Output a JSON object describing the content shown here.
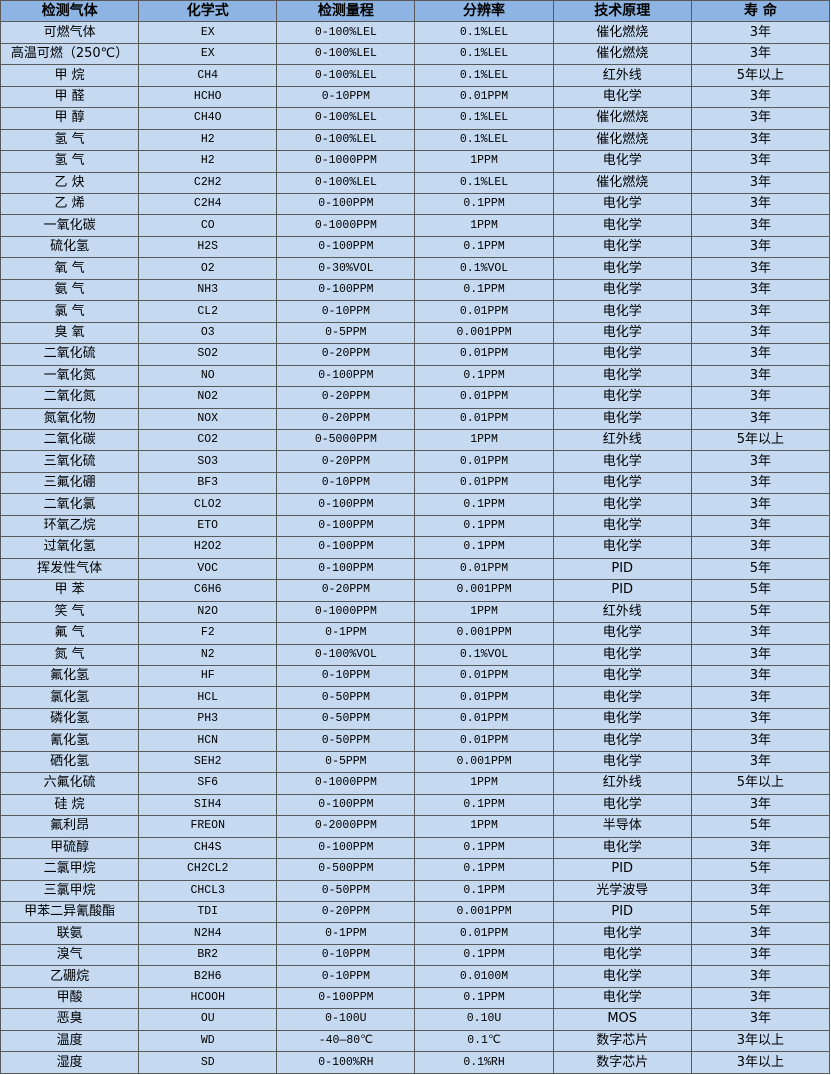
{
  "colors": {
    "header_bg": "#8db4e2",
    "row_bg": "#c5d9f1",
    "border": "#5a5a5a"
  },
  "headers": [
    "检测气体",
    "化学式",
    "检测量程",
    "分辨率",
    "技术原理",
    "寿 命"
  ],
  "rows": [
    [
      "可燃气体",
      "EX",
      "0-100%LEL",
      "0.1%LEL",
      "催化燃烧",
      "3年"
    ],
    [
      "高温可燃（250℃）",
      "EX",
      "0-100%LEL",
      "0.1%LEL",
      "催化燃烧",
      "3年"
    ],
    [
      "甲 烷",
      "CH4",
      "0-100%LEL",
      "0.1%LEL",
      "红外线",
      "5年以上"
    ],
    [
      "甲 醛",
      "HCHO",
      "0-10PPM",
      "0.01PPM",
      "电化学",
      "3年"
    ],
    [
      "甲 醇",
      "CH4O",
      "0-100%LEL",
      "0.1%LEL",
      "催化燃烧",
      "3年"
    ],
    [
      "氢 气",
      "H2",
      "0-100%LEL",
      "0.1%LEL",
      "催化燃烧",
      "3年"
    ],
    [
      "氢 气",
      "H2",
      "0-1000PPM",
      "1PPM",
      "电化学",
      "3年"
    ],
    [
      "乙 炔",
      "C2H2",
      "0-100%LEL",
      "0.1%LEL",
      "催化燃烧",
      "3年"
    ],
    [
      "乙 烯",
      "C2H4",
      "0-100PPM",
      "0.1PPM",
      "电化学",
      "3年"
    ],
    [
      "一氧化碳",
      "CO",
      "0-1000PPM",
      "1PPM",
      "电化学",
      "3年"
    ],
    [
      "硫化氢",
      "H2S",
      "0-100PPM",
      "0.1PPM",
      "电化学",
      "3年"
    ],
    [
      "氧 气",
      "O2",
      "0-30%VOL",
      "0.1%VOL",
      "电化学",
      "3年"
    ],
    [
      "氨 气",
      "NH3",
      "0-100PPM",
      "0.1PPM",
      "电化学",
      "3年"
    ],
    [
      "氯 气",
      "CL2",
      "0-10PPM",
      "0.01PPM",
      "电化学",
      "3年"
    ],
    [
      "臭 氧",
      "O3",
      "0-5PPM",
      "0.001PPM",
      "电化学",
      "3年"
    ],
    [
      "二氧化硫",
      "SO2",
      "0-20PPM",
      "0.01PPM",
      "电化学",
      "3年"
    ],
    [
      "一氧化氮",
      "NO",
      "0-100PPM",
      "0.1PPM",
      "电化学",
      "3年"
    ],
    [
      "二氧化氮",
      "NO2",
      "0-20PPM",
      "0.01PPM",
      "电化学",
      "3年"
    ],
    [
      "氮氧化物",
      "NOX",
      "0-20PPM",
      "0.01PPM",
      "电化学",
      "3年"
    ],
    [
      "二氧化碳",
      "CO2",
      "0-5000PPM",
      "1PPM",
      "红外线",
      "5年以上"
    ],
    [
      "三氧化硫",
      "SO3",
      "0-20PPM",
      "0.01PPM",
      "电化学",
      "3年"
    ],
    [
      "三氟化硼",
      "BF3",
      "0-10PPM",
      "0.01PPM",
      "电化学",
      "3年"
    ],
    [
      "二氧化氯",
      "CLO2",
      "0-100PPM",
      "0.1PPM",
      "电化学",
      "3年"
    ],
    [
      "环氧乙烷",
      "ETO",
      "0-100PPM",
      "0.1PPM",
      "电化学",
      "3年"
    ],
    [
      "过氧化氢",
      "H2O2",
      "0-100PPM",
      "0.1PPM",
      "电化学",
      "3年"
    ],
    [
      "挥发性气体",
      "VOC",
      "0-100PPM",
      "0.01PPM",
      "PID",
      "5年"
    ],
    [
      "甲 苯",
      "C6H6",
      "0-20PPM",
      "0.001PPM",
      "PID",
      "5年"
    ],
    [
      "笑 气",
      "N2O",
      "0-1000PPM",
      "1PPM",
      "红外线",
      "5年"
    ],
    [
      "氟 气",
      "F2",
      "0-1PPM",
      "0.001PPM",
      "电化学",
      "3年"
    ],
    [
      "氮 气",
      "N2",
      "0-100%VOL",
      "0.1%VOL",
      "电化学",
      "3年"
    ],
    [
      "氟化氢",
      "HF",
      "0-10PPM",
      "0.01PPM",
      "电化学",
      "3年"
    ],
    [
      "氯化氢",
      "HCL",
      "0-50PPM",
      "0.01PPM",
      "电化学",
      "3年"
    ],
    [
      "磷化氢",
      "PH3",
      "0-50PPM",
      "0.01PPM",
      "电化学",
      "3年"
    ],
    [
      "氰化氢",
      "HCN",
      "0-50PPM",
      "0.01PPM",
      "电化学",
      "3年"
    ],
    [
      "硒化氢",
      "SEH2",
      "0-5PPM",
      "0.001PPM",
      "电化学",
      "3年"
    ],
    [
      "六氟化硫",
      "SF6",
      "0-1000PPM",
      "1PPM",
      "红外线",
      "5年以上"
    ],
    [
      "硅 烷",
      "SIH4",
      "0-100PPM",
      "0.1PPM",
      "电化学",
      "3年"
    ],
    [
      "氟利昂",
      "FREON",
      "0-2000PPM",
      "1PPM",
      "半导体",
      "5年"
    ],
    [
      "甲硫醇",
      "CH4S",
      "0-100PPM",
      "0.1PPM",
      "电化学",
      "3年"
    ],
    [
      "二氯甲烷",
      "CH2CL2",
      "0-500PPM",
      "0.1PPM",
      "PID",
      "5年"
    ],
    [
      "三氯甲烷",
      "CHCL3",
      "0-50PPM",
      "0.1PPM",
      "光学波导",
      "3年"
    ],
    [
      "甲苯二异氰酸酯",
      "TDI",
      "0-20PPM",
      "0.001PPM",
      "PID",
      "5年"
    ],
    [
      "联氨",
      "N2H4",
      "0-1PPM",
      "0.01PPM",
      "电化学",
      "3年"
    ],
    [
      "溴气",
      "BR2",
      "0-10PPM",
      "0.1PPM",
      "电化学",
      "3年"
    ],
    [
      "乙硼烷",
      "B2H6",
      "0-10PPM",
      "0.0100M",
      "电化学",
      "3年"
    ],
    [
      "甲酸",
      "HCOOH",
      "0-100PPM",
      "0.1PPM",
      "电化学",
      "3年"
    ],
    [
      "恶臭",
      "OU",
      "0-100U",
      "0.10U",
      "MOS",
      "3年"
    ],
    [
      "温度",
      "WD",
      "-40—80℃",
      "0.1℃",
      "数字芯片",
      "3年以上"
    ],
    [
      "湿度",
      "SD",
      "0-100%RH",
      "0.1%RH",
      "数字芯片",
      "3年以上"
    ]
  ]
}
